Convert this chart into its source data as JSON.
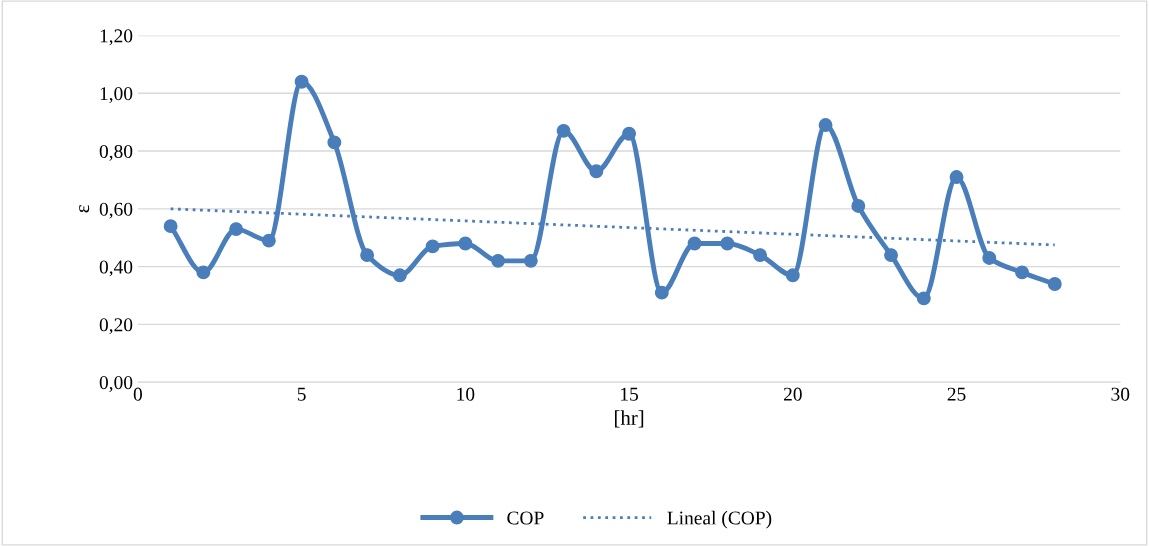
{
  "chart_data": {
    "type": "line",
    "xlabel": "[hr]",
    "ylabel": "ε",
    "xlim": [
      0,
      30
    ],
    "xticks": [
      0,
      5,
      10,
      15,
      20,
      25,
      30
    ],
    "ylim": [
      0,
      1.2
    ],
    "yticks": [
      {
        "value": 0,
        "label": "0,00"
      },
      {
        "value": 0.2,
        "label": "0,20"
      },
      {
        "value": 0.4,
        "label": "0,40"
      },
      {
        "value": 0.6,
        "label": "0,60"
      },
      {
        "value": 0.8,
        "label": "0,80"
      },
      {
        "value": 1.0,
        "label": "1,00"
      },
      {
        "value": 1.2,
        "label": "1,20"
      }
    ],
    "grid": "y",
    "legend": "bottom",
    "series": [
      {
        "name": "COP",
        "color": "#4a7ebb",
        "marker": "circle",
        "line_style": "solid",
        "x": [
          1,
          2,
          3,
          4,
          5,
          6,
          7,
          8,
          9,
          10,
          11,
          12,
          13,
          14,
          15,
          16,
          17,
          18,
          19,
          20,
          21,
          22,
          23,
          24,
          25,
          26,
          27,
          28
        ],
        "values": [
          0.54,
          0.38,
          0.53,
          0.49,
          1.04,
          0.83,
          0.44,
          0.37,
          0.47,
          0.48,
          0.42,
          0.42,
          0.87,
          0.73,
          0.86,
          0.31,
          0.48,
          0.48,
          0.44,
          0.37,
          0.89,
          0.61,
          0.44,
          0.29,
          0.71,
          0.43,
          0.38,
          0.34
        ]
      },
      {
        "name": "Lineal (COP)",
        "color": "#4a7ebb",
        "marker": "none",
        "line_style": "dotted",
        "x": [
          1,
          28
        ],
        "values": [
          0.6,
          0.475
        ]
      }
    ]
  }
}
